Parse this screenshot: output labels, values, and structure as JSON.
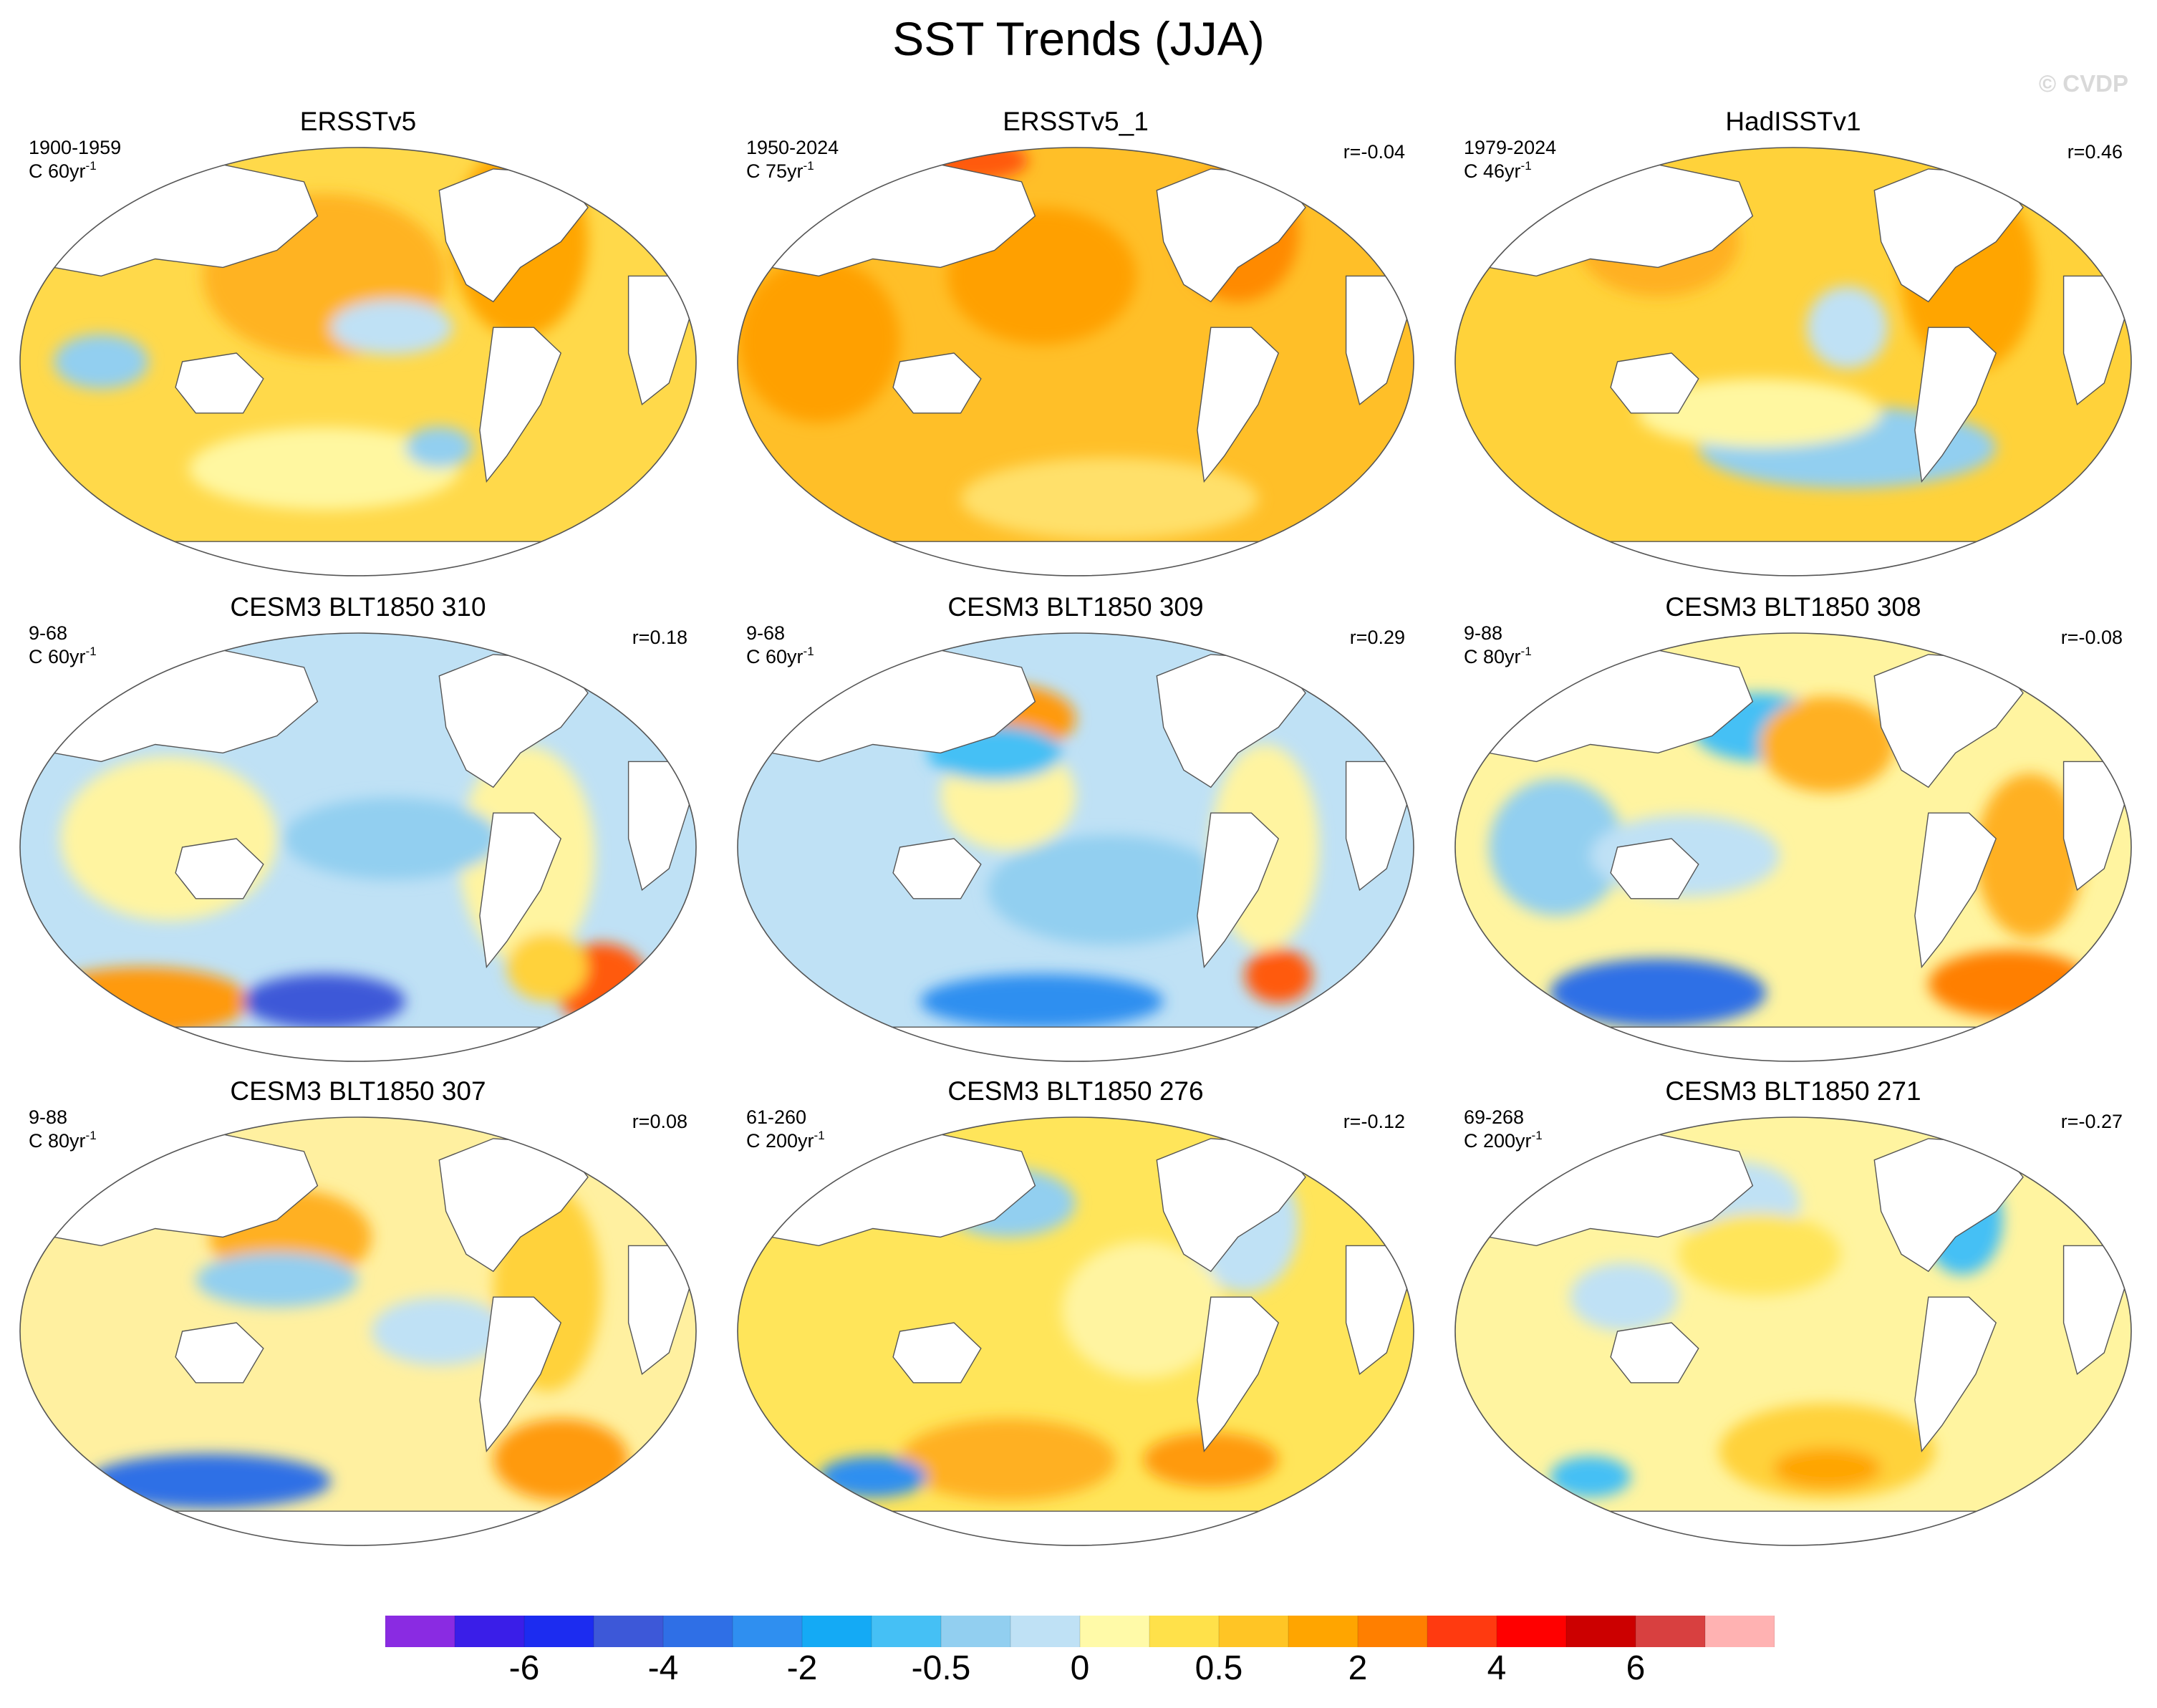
{
  "title": "SST Trends (JJA)",
  "watermark": "© CVDP",
  "panels": [
    {
      "title": "ERSSTv5",
      "period": "1900-1959",
      "unit_prefix": "C 60yr",
      "unit_exp": "-1",
      "r": ""
    },
    {
      "title": "ERSSTv5_1",
      "period": "1950-2024",
      "unit_prefix": "C 75yr",
      "unit_exp": "-1",
      "r": "r=-0.04"
    },
    {
      "title": "HadISSTv1",
      "period": "1979-2024",
      "unit_prefix": "C 46yr",
      "unit_exp": "-1",
      "r": "r=0.46"
    },
    {
      "title": "CESM3 BLT1850 310",
      "period": "9-68",
      "unit_prefix": "C 60yr",
      "unit_exp": "-1",
      "r": "r=0.18"
    },
    {
      "title": "CESM3 BLT1850 309",
      "period": "9-68",
      "unit_prefix": "C 60yr",
      "unit_exp": "-1",
      "r": "r=0.29"
    },
    {
      "title": "CESM3 BLT1850 308",
      "period": "9-88",
      "unit_prefix": "C 80yr",
      "unit_exp": "-1",
      "r": "r=-0.08"
    },
    {
      "title": "CESM3 BLT1850 307",
      "period": "9-88",
      "unit_prefix": "C 80yr",
      "unit_exp": "-1",
      "r": "r=0.08"
    },
    {
      "title": "CESM3 BLT1850 276",
      "period": "61-260",
      "unit_prefix": "C 200yr",
      "unit_exp": "-1",
      "r": "r=-0.12"
    },
    {
      "title": "CESM3 BLT1850 271",
      "period": "69-268",
      "unit_prefix": "C 200yr",
      "unit_exp": "-1",
      "r": "r=-0.27"
    }
  ],
  "colorbar": {
    "colors": [
      "#8a2be2",
      "#3a1ee8",
      "#1c2cf0",
      "#3d58d8",
      "#2f6fe6",
      "#2f8ff0",
      "#14aaf5",
      "#45c0f5",
      "#92cff0",
      "#bfe1f5",
      "#fffaa8",
      "#ffe14a",
      "#ffc525",
      "#ffa500",
      "#ff7f00",
      "#ff3a10",
      "#ff0000",
      "#cc0000",
      "#d84040",
      "#ffb2b2"
    ],
    "tick_labels": [
      "-6",
      "-4",
      "-2",
      "-0.5",
      "0",
      "0.5",
      "2",
      "4",
      "6"
    ],
    "tick_boundaries": [
      2,
      4,
      6,
      8,
      10,
      12,
      14,
      16,
      18
    ]
  }
}
